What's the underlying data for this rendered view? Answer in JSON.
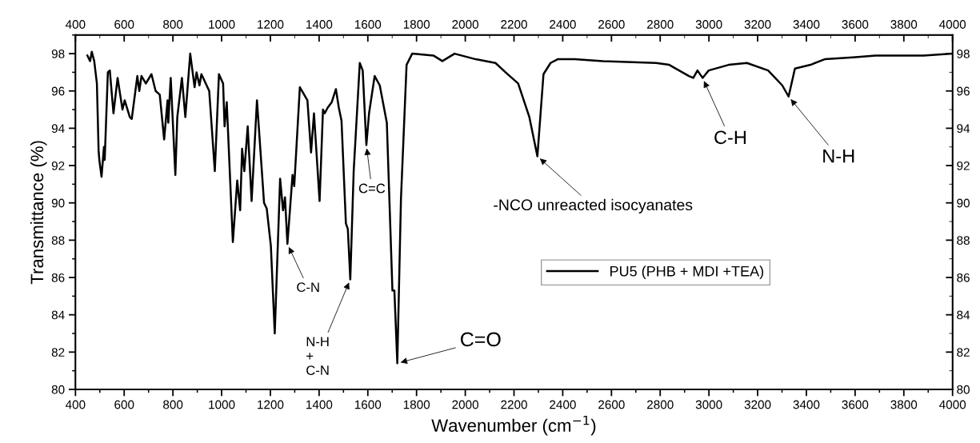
{
  "chart_data": {
    "type": "line",
    "xlabel": "Wavenumber (cm$^{−1}$)",
    "ylabel": "Transmittance (%)",
    "xlim": [
      400,
      4000
    ],
    "xticks": [
      400,
      600,
      800,
      1000,
      1200,
      1400,
      1600,
      1800,
      2000,
      2200,
      2400,
      2600,
      2800,
      3000,
      3200,
      3400,
      3600,
      3800,
      4000
    ],
    "x2lim": [
      400,
      4000
    ],
    "x2ticks": [
      400,
      600,
      800,
      1000,
      1200,
      1400,
      1600,
      1800,
      2000,
      2200,
      2400,
      2600,
      2800,
      3000,
      3200,
      3400,
      3600,
      3800,
      4000
    ],
    "ylim": [
      80,
      99
    ],
    "yticks": [
      80,
      82,
      84,
      86,
      88,
      90,
      92,
      94,
      96,
      98
    ],
    "y2lim": [
      80,
      99
    ],
    "y2ticks": [
      80,
      82,
      84,
      86,
      88,
      90,
      92,
      94,
      96,
      98
    ],
    "grid": false,
    "legend": "center right",
    "marker": "none",
    "line_style": "solid",
    "series": [
      {
        "name": "PU5 (PHB + MDI +TEA)",
        "color": "#000000",
        "x": [
          449,
          460,
          467,
          477,
          488,
          495,
          498,
          507,
          517,
          520,
          533,
          541,
          556,
          573,
          593,
          602,
          623,
          631,
          654,
          662,
          671,
          689,
          712,
          729,
          746,
          764,
          778,
          781,
          791,
          810,
          818,
          837,
          851,
          871,
          889,
          897,
          909,
          917,
          949,
          972,
          989,
          1006,
          1012,
          1021,
          1046,
          1064,
          1076,
          1084,
          1093,
          1107,
          1123,
          1145,
          1174,
          1185,
          1202,
          1218,
          1240,
          1252,
          1260,
          1270,
          1291,
          1298,
          1321,
          1352,
          1367,
          1379,
          1402,
          1416,
          1423,
          1435,
          1452,
          1469,
          1481,
          1492,
          1510,
          1518,
          1528,
          1542,
          1567,
          1579,
          1594,
          1605,
          1628,
          1649,
          1678,
          1701,
          1709,
          1721,
          1736,
          1759,
          1782,
          1869,
          1906,
          1956,
          2043,
          2124,
          2165,
          2217,
          2263,
          2296,
          2321,
          2350,
          2379,
          2449,
          2565,
          2783,
          2837,
          2918,
          2936,
          2953,
          2974,
          2999,
          3081,
          3156,
          3243,
          3301,
          3327,
          3353,
          3417,
          3475,
          3591,
          3684,
          3881,
          3997
        ],
        "values": [
          97.9,
          97.6,
          98.1,
          97.6,
          96.4,
          92.8,
          92.3,
          91.4,
          93.0,
          92.3,
          97.0,
          97.1,
          94.8,
          96.7,
          95.0,
          95.5,
          94.6,
          94.5,
          96.8,
          96.0,
          96.8,
          96.4,
          96.9,
          96.0,
          95.8,
          93.4,
          95.5,
          94.3,
          96.7,
          91.5,
          94.6,
          96.7,
          94.6,
          98.0,
          96.2,
          97.0,
          96.3,
          96.9,
          96.0,
          91.7,
          96.9,
          96.4,
          94.1,
          95.4,
          87.9,
          91.2,
          89.6,
          92.9,
          91.7,
          94.1,
          90.1,
          95.5,
          90.0,
          89.7,
          87.7,
          83.0,
          91.3,
          89.6,
          90.3,
          87.8,
          91.5,
          90.9,
          96.2,
          95.5,
          92.7,
          94.8,
          90.1,
          95.0,
          94.8,
          95.1,
          95.4,
          96.1,
          95.1,
          94.4,
          88.9,
          88.6,
          85.9,
          91.7,
          97.5,
          97.1,
          93.1,
          94.8,
          96.8,
          96.3,
          94.3,
          85.3,
          85.3,
          81.4,
          90.2,
          97.4,
          98.0,
          97.9,
          97.6,
          98.0,
          97.7,
          97.5,
          97.0,
          96.4,
          94.6,
          92.5,
          96.9,
          97.5,
          97.7,
          97.7,
          97.6,
          97.5,
          97.4,
          96.8,
          96.7,
          97.1,
          96.7,
          97.1,
          97.4,
          97.5,
          97.1,
          96.3,
          95.7,
          97.2,
          97.4,
          97.7,
          97.8,
          97.9,
          97.9,
          98.0
        ]
      }
    ],
    "annotations": [
      {
        "text": "C-N",
        "x": 1270,
        "y": 87.8
      },
      {
        "text": "N-H\n+\nC-N",
        "x": 1528,
        "y": 85.9
      },
      {
        "text": "C=C",
        "x": 1594,
        "y": 93.1
      },
      {
        "text": "C=O",
        "x": 1721,
        "y": 81.4
      },
      {
        "text": "-NCO unreacted isocyanates",
        "x": 2296,
        "y": 92.5
      },
      {
        "text": "C-H",
        "x": 2974,
        "y": 96.7
      },
      {
        "text": "N-H",
        "x": 3327,
        "y": 95.7
      }
    ]
  }
}
